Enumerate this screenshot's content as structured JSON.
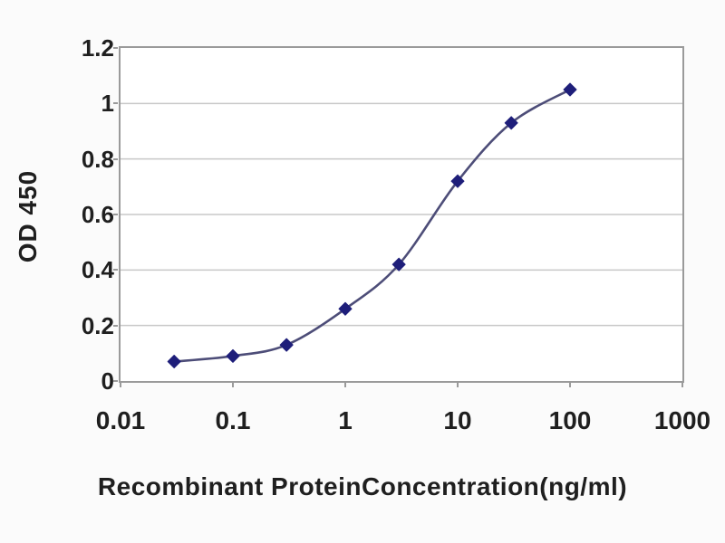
{
  "colors": {
    "background": "#fbfbfb",
    "plot_background": "#ffffff",
    "plot_border": "#9a9a9a",
    "gridline": "#c8c8c8",
    "line": "#4d4d78",
    "marker": "#1e1e7a",
    "text": "#1f1f1f"
  },
  "chart_data": {
    "type": "line",
    "title": "",
    "xlabel": "Recombinant ProteinConcentration(ng/ml)",
    "ylabel": "OD 450",
    "x_scale": "log",
    "xlim": [
      0.01,
      1000
    ],
    "ylim": [
      0,
      1.2
    ],
    "x_ticks": [
      0.01,
      0.1,
      1,
      10,
      100,
      1000
    ],
    "x_tick_labels": [
      "0.01",
      "0.1",
      "1",
      "10",
      "100",
      "1000"
    ],
    "y_ticks": [
      0,
      0.2,
      0.4,
      0.6,
      0.8,
      1,
      1.2
    ],
    "y_tick_labels": [
      "0",
      "0.2",
      "0.4",
      "0.6",
      "0.8",
      "1",
      "1.2"
    ],
    "grid": "horizontal-only",
    "legend": "none",
    "series": [
      {
        "marker": "diamond",
        "x": [
          0.03,
          0.1,
          0.3,
          1,
          3,
          10,
          30,
          100
        ],
        "y": [
          0.07,
          0.09,
          0.13,
          0.26,
          0.42,
          0.72,
          0.93,
          1.05
        ]
      }
    ]
  }
}
